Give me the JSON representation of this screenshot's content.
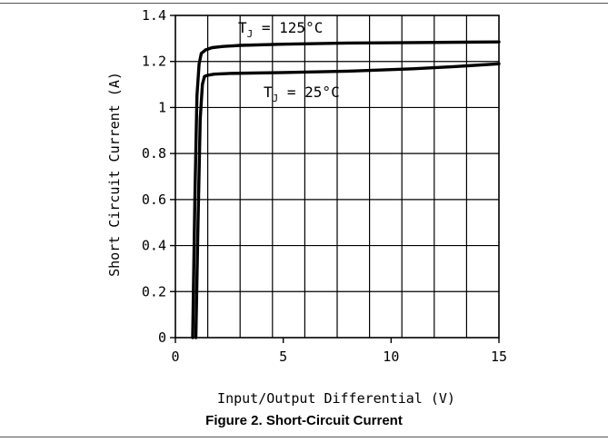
{
  "caption": "Figure 2. Short-Circuit Current",
  "chart_data": {
    "type": "line",
    "xlabel": "Input/Output Differential (V)",
    "ylabel": "Short Circuit Current (A)",
    "xlim": [
      0,
      15
    ],
    "ylim": [
      0,
      1.4
    ],
    "xticks": [
      0,
      5,
      10,
      15
    ],
    "xtick_labels": [
      "0",
      "5",
      "10",
      "15"
    ],
    "yticks": [
      0,
      0.2,
      0.4,
      0.6,
      0.8,
      1.0,
      1.2,
      1.4
    ],
    "ytick_labels": [
      "0",
      "0.2",
      "0.4",
      "0.6",
      "0.8",
      "1",
      "1.2",
      "1.4"
    ],
    "grid": true,
    "series": [
      {
        "name": "T_J = 125°C",
        "label_main": "T",
        "label_sub": "J",
        "label_rest": " = 125°C",
        "color": "#000000",
        "x": [
          0.8,
          0.9,
          1.0,
          1.1,
          1.2,
          1.4,
          1.7,
          2.2,
          3.0,
          5.0,
          8.0,
          11.0,
          15.0
        ],
        "y": [
          0.0,
          0.6,
          1.05,
          1.19,
          1.235,
          1.25,
          1.26,
          1.265,
          1.27,
          1.275,
          1.28,
          1.282,
          1.285
        ]
      },
      {
        "name": "T_J = 25°C",
        "label_main": "T",
        "label_sub": "J",
        "label_rest": " = 25°C",
        "color": "#000000",
        "x": [
          0.95,
          1.05,
          1.15,
          1.25,
          1.35,
          1.5,
          1.8,
          2.5,
          5.0,
          8.0,
          11.0,
          13.0,
          15.0
        ],
        "y": [
          0.0,
          0.5,
          0.95,
          1.1,
          1.135,
          1.14,
          1.145,
          1.148,
          1.152,
          1.158,
          1.168,
          1.178,
          1.19
        ]
      }
    ]
  }
}
